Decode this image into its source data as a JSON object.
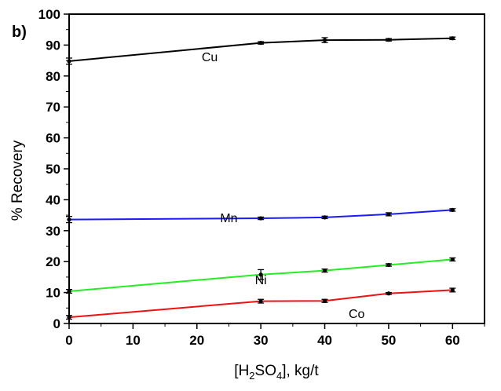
{
  "chart_data": {
    "type": "line",
    "panel_label": "b)",
    "xlabel_parts": {
      "prefix": "[H",
      "sub1": "2",
      "mid": "SO",
      "sub2": "4",
      "suffix": "], kg/t"
    },
    "ylabel": "% Recovery",
    "xlim": [
      0,
      65
    ],
    "ylim": [
      0,
      100
    ],
    "x_ticks": [
      0,
      10,
      20,
      30,
      40,
      50,
      60
    ],
    "y_ticks": [
      0,
      10,
      20,
      30,
      40,
      50,
      60,
      70,
      80,
      90,
      100
    ],
    "grid": false,
    "legend": "none",
    "series": [
      {
        "name": "Cu",
        "color": "#000000",
        "x": [
          0,
          30,
          40,
          50,
          60
        ],
        "values": [
          84.8,
          90.7,
          91.6,
          91.7,
          92.2
        ],
        "errors": [
          1.0,
          0.4,
          0.8,
          0.4,
          0.4
        ],
        "label_at": [
          22,
          86
        ]
      },
      {
        "name": "Mn",
        "color": "#1a1aff",
        "x": [
          0,
          30,
          40,
          50,
          60
        ],
        "values": [
          33.6,
          34.0,
          34.3,
          35.3,
          36.7
        ],
        "errors": [
          1.0,
          0.4,
          0.4,
          0.5,
          0.4
        ],
        "label_at": [
          25,
          34
        ]
      },
      {
        "name": "Ni",
        "color": "#22ee22",
        "x": [
          0,
          30,
          40,
          50,
          60
        ],
        "values": [
          10.4,
          15.8,
          17.1,
          18.9,
          20.7
        ],
        "errors": [
          0.6,
          1.6,
          0.5,
          0.4,
          0.5
        ],
        "label_at": [
          30,
          14
        ]
      },
      {
        "name": "Co",
        "color": "#ee1111",
        "x": [
          0,
          30,
          40,
          50,
          60
        ],
        "values": [
          2.0,
          7.2,
          7.3,
          9.7,
          10.8
        ],
        "errors": [
          0.6,
          0.6,
          0.5,
          0.3,
          0.6
        ],
        "label_at": [
          45,
          3
        ]
      }
    ]
  }
}
